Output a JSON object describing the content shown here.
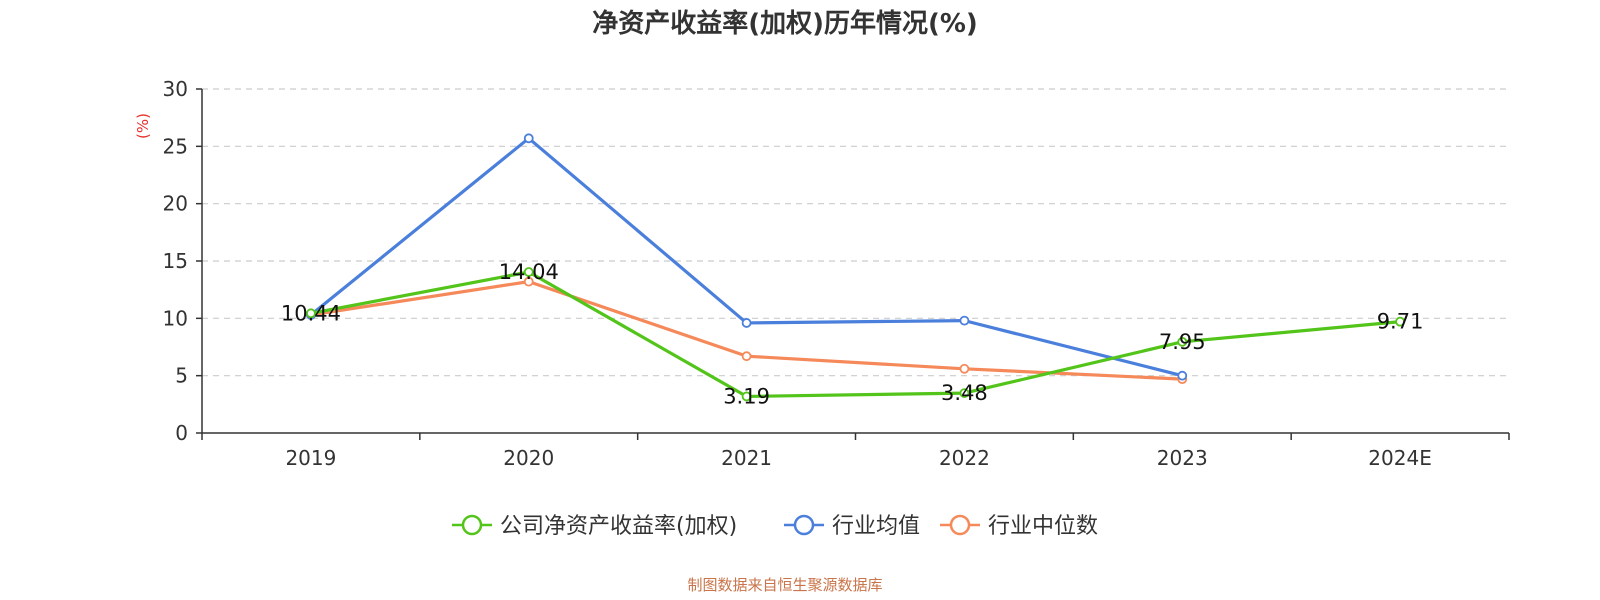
{
  "chart_data": {
    "type": "line",
    "title": "净资产收益率(加权)历年情况(%)",
    "ylabel": "(%)",
    "xlabel": "",
    "categories": [
      "2019",
      "2020",
      "2021",
      "2022",
      "2023",
      "2024E"
    ],
    "ylim": [
      0,
      30
    ],
    "yticks": [
      0,
      5,
      10,
      15,
      20,
      25,
      30
    ],
    "grid": true,
    "legend_position": "bottom-center",
    "series": [
      {
        "name": "公司净资产收益率(加权)",
        "color": "#52c41a",
        "values": [
          10.44,
          14.04,
          3.19,
          3.48,
          7.95,
          9.71
        ],
        "labels": [
          "10.44",
          "14.04",
          "3.19",
          "3.48",
          "7.95",
          "9.71"
        ]
      },
      {
        "name": "行业均值",
        "color": "#4a7fdc",
        "values": [
          10.3,
          25.7,
          9.6,
          9.8,
          5.0,
          null
        ]
      },
      {
        "name": "行业中位数",
        "color": "#f5895a",
        "values": [
          10.3,
          13.2,
          6.7,
          5.6,
          4.7,
          null
        ]
      }
    ],
    "source": "制图数据来自恒生聚源数据库",
    "ylabel_color": "#e8302a",
    "source_color": "#c9744a"
  }
}
